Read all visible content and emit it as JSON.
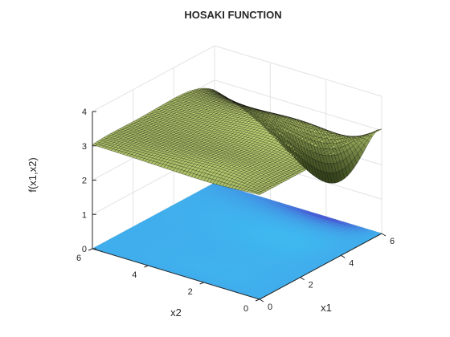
{
  "chart_data": {
    "type": "surface",
    "title": "HOSAKI FUNCTION",
    "xlabel": "x1",
    "ylabel": "x2",
    "zlabel": "f(x1,x2)",
    "xlim": [
      0,
      6
    ],
    "ylim": [
      0,
      6
    ],
    "zlim": [
      0,
      4
    ],
    "x_ticks": [
      "0",
      "2",
      "4",
      "6"
    ],
    "y_ticks": [
      "0",
      "2",
      "4",
      "6"
    ],
    "z_ticks": [
      "0",
      "1",
      "2",
      "3",
      "4"
    ],
    "grid": true,
    "plotted_function": "f(x1,x2) = -(1 - 8*x1 + 7*x1^2 - (7/3)*x1^3 + (1/4)*x1^4) * x2^2 * exp(-x2), mapped onto the 1-4 vertical range",
    "surface_z_range": [
      1,
      3.4
    ],
    "projection": "contour-colored map at z = 0",
    "colors": {
      "surface_low": "#2d3a16",
      "surface_high": "#c6dc78",
      "surface_edge": "#050505",
      "map_low": "#4a35c8",
      "map_high": "#3fb8ef",
      "axes": "#262626",
      "grid": "#e3e3e3"
    }
  }
}
